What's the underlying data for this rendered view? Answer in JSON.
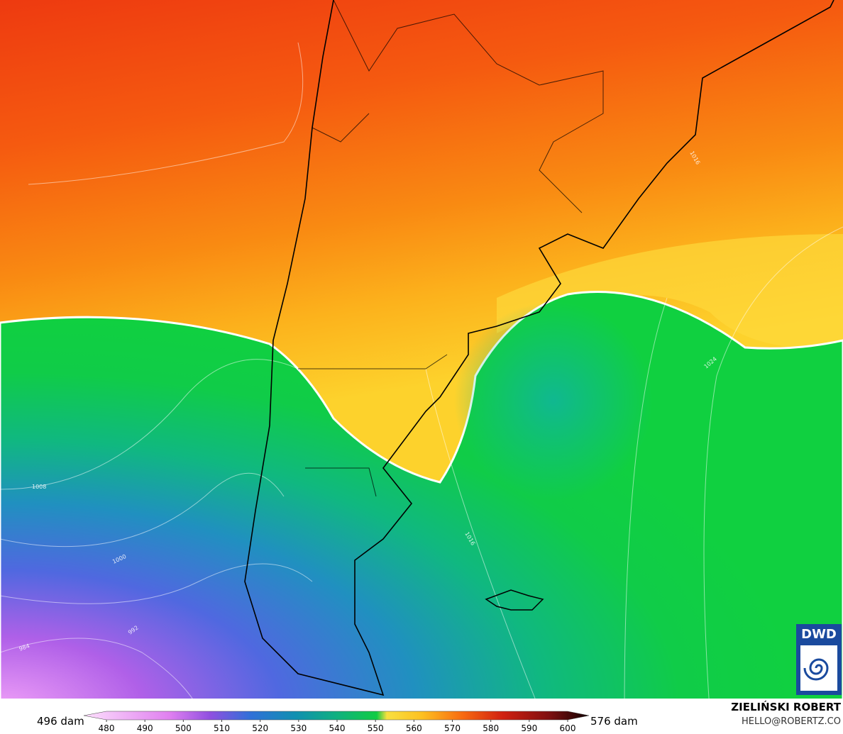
{
  "map": {
    "contour_labels": [
      "1008",
      "1000",
      "992",
      "984",
      "1016",
      "1024",
      "1016"
    ]
  },
  "colorbar": {
    "min_label": "496 dam",
    "max_label": "576 dam",
    "ticks": [
      480,
      490,
      500,
      510,
      520,
      530,
      540,
      550,
      560,
      570,
      580,
      590,
      600
    ]
  },
  "credits": {
    "author": "ZIELIŃSKI ROBERT",
    "email": "HELLO@ROBERTZ.CO",
    "logo": "DWD"
  }
}
